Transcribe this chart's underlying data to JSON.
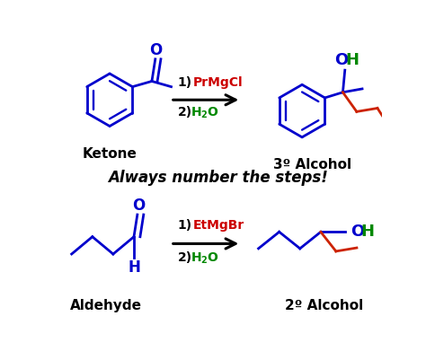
{
  "bg_color": "#ffffff",
  "blue": "#0000cc",
  "red": "#cc0000",
  "green": "#008800",
  "black": "#000000",
  "dark_red": "#cc2200",
  "figsize": [
    4.74,
    4.01
  ],
  "dpi": 100,
  "italic_text": "Always number the steps!",
  "ketone_label": "Ketone",
  "alcohol3_label": "3º Alcohol",
  "aldehyde_label": "Aldehyde",
  "alcohol2_label": "2º Alcohol",
  "step1_black": "1)  ",
  "step1_red1": "PrMgCl",
  "step1_red2": "EtMgBr",
  "step2_black": "2) ",
  "step2_green": "H",
  "step2_sub": "2",
  "step2_o": "O"
}
